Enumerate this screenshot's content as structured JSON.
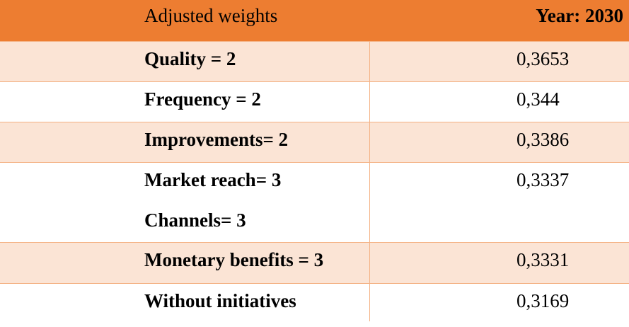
{
  "table": {
    "header": {
      "label": "Adjusted weights",
      "year": "Year: 2030"
    },
    "rows": [
      {
        "label_lines": [
          "Quality = 2"
        ],
        "value": "0,3653",
        "shaded": true
      },
      {
        "label_lines": [
          "Frequency = 2"
        ],
        "value": "0,344",
        "shaded": false
      },
      {
        "label_lines": [
          "Improvements= 2"
        ],
        "value": "0,3386",
        "shaded": true
      },
      {
        "label_lines": [
          "Market reach= 3",
          "Channels= 3"
        ],
        "value": "0,3337",
        "shaded": false
      },
      {
        "label_lines": [
          "Monetary benefits = 3"
        ],
        "value": "0,3331",
        "shaded": true
      },
      {
        "label_lines": [
          "Without initiatives"
        ],
        "value": "0,3169",
        "shaded": false
      }
    ],
    "colors": {
      "header": "#ed7d31",
      "shade": "#fbe4d5",
      "border": "#f4b183"
    }
  }
}
